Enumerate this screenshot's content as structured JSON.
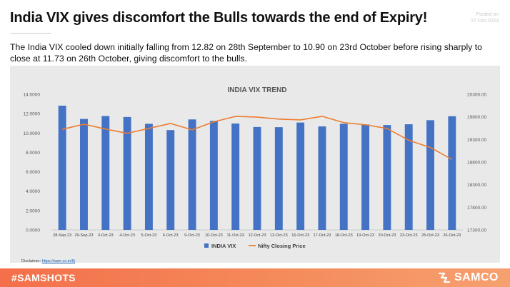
{
  "header": {
    "title": "India VIX gives discomfort the Bulls towards the end of Expiry!",
    "posted_label": "Posted on",
    "posted_date": "27-Oct-2023"
  },
  "description": "The India VIX cooled down initially falling from 12.82 on 28th September to 10.90 on 23rd October before rising sharply to close at 11.73 on 26th October, giving discomfort to the bulls.",
  "disclaimer": {
    "label": "Disclaimer:",
    "link": "https://sam-co.in/6j"
  },
  "footer": {
    "hashtag": "#SAMSHOTS",
    "brand": "SAMCO"
  },
  "colors": {
    "bar": "#4472c4",
    "line": "#ed7d31",
    "footer": "#f47a50"
  },
  "chart_data": {
    "type": "bar",
    "title": "INDIA VIX TREND",
    "categories": [
      "28-Sep-23",
      "29-Sep-23",
      "3-Oct-23",
      "4-Oct-23",
      "5-Oct-23",
      "6-Oct-23",
      "9-Oct-23",
      "10-Oct-23",
      "11-Oct-23",
      "12-Oct-23",
      "13-Oct-23",
      "16-Oct-23",
      "17-Oct-23",
      "18-Oct-23",
      "19-Oct-23",
      "20-Oct-23",
      "23-Oct-23",
      "25-Oct-23",
      "26-Oct-23"
    ],
    "series": [
      {
        "name": "INDIA VIX",
        "type": "bar",
        "axis": "left",
        "values": [
          12.82,
          11.45,
          11.75,
          11.65,
          10.95,
          10.3,
          11.4,
          11.25,
          10.98,
          10.62,
          10.6,
          11.08,
          10.68,
          10.95,
          10.88,
          10.82,
          10.9,
          11.32,
          11.73
        ]
      },
      {
        "name": "Nifty Closing Price",
        "type": "line",
        "axis": "right",
        "values": [
          19523,
          19638,
          19529,
          19436,
          19545,
          19654,
          19512,
          19690,
          19811,
          19794,
          19751,
          19732,
          19812,
          19672,
          19625,
          19543,
          19282,
          19122,
          18858
        ]
      }
    ],
    "y_left": {
      "min": 0,
      "max": 14,
      "ticks": [
        "0.0000",
        "2.0000",
        "4.0000",
        "6.0000",
        "8.0000",
        "10.0000",
        "12.0000",
        "14.0000"
      ]
    },
    "y_right": {
      "min": 17300,
      "max": 20300,
      "ticks": [
        "17300.00",
        "17800.00",
        "18300.00",
        "18800.00",
        "19300.00",
        "19800.00",
        "20300.00"
      ]
    },
    "legend_position": "bottom",
    "grid": false
  }
}
